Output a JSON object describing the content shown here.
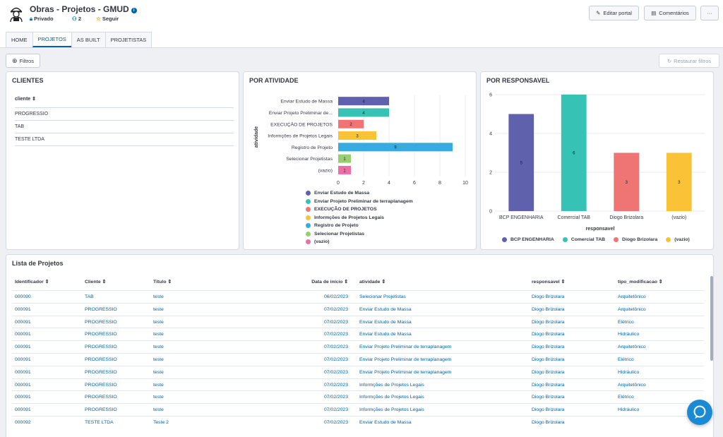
{
  "header": {
    "title": "Obras - Projetos - GMUD",
    "info_icon": "info-icon",
    "privacy": "Privado",
    "members": "2",
    "follow": "Seguir",
    "edit_label": "Editar portal",
    "comments_label": "Comentários",
    "more_label": "···"
  },
  "tabs": [
    {
      "label": "HOME"
    },
    {
      "label": "PROJETOS"
    },
    {
      "label": "AS BUILT"
    },
    {
      "label": "PROJETISTAS"
    }
  ],
  "toolbar": {
    "filters_label": "Filtros",
    "restore_label": "Restaurar filtros"
  },
  "clients_panel": {
    "title": "CLIENTES",
    "column": "cliente",
    "rows": [
      "PROGRESSIO",
      "TAB",
      "TESTE LTDA"
    ]
  },
  "activity_panel": {
    "title": "POR ATIVIDADE",
    "y_label": "atividade",
    "legend": [
      "Enviar Estudo de Massa",
      "Enviar Projeto Preliminar de terraplanagem",
      "EXECUÇÃO DE PROJETOS",
      "Informções de Projetos Legais",
      "Registro de Projeto",
      "Selecionar Projetistas",
      "(vazio)"
    ]
  },
  "responsible_panel": {
    "title": "POR RESPONSAVEL"
  },
  "chart_data": [
    {
      "type": "bar",
      "orientation": "horizontal",
      "categories": [
        "Enviar Estudo de Massa",
        "Enviar Projeto Preliminar de...",
        "EXECUÇÃO DE PROJETOS",
        "Informções de Projetos Legais",
        "Registro de Projeto",
        "Selecionar Projetistas",
        "(vazio)"
      ],
      "values": [
        4,
        4,
        2,
        3,
        9,
        1,
        1
      ],
      "colors": [
        "#6061ad",
        "#36c2b4",
        "#ef7474",
        "#fac337",
        "#37abdd",
        "#97cf6e",
        "#eb6fa5"
      ],
      "xlabel": "",
      "ylabel": "atividade",
      "xlim": [
        0,
        10
      ],
      "xticks": [
        "0",
        "2",
        "4",
        "6",
        "8",
        "10"
      ],
      "grid": true,
      "legend_position": "bottom"
    },
    {
      "type": "bar",
      "categories": [
        "BCP ENGENHARIA",
        "Comercial TAB",
        "Diogo Brizolara",
        "(vazio)"
      ],
      "values": [
        5,
        6,
        3,
        3
      ],
      "colors": [
        "#6061ad",
        "#36c2b4",
        "#ef7474",
        "#fac337"
      ],
      "xlabel": "responsavel",
      "ylabel": "",
      "ylim": [
        0,
        6
      ],
      "yticks": [
        "0",
        "2",
        "4",
        "6"
      ],
      "grid": true,
      "legend_position": "bottom"
    }
  ],
  "project_list": {
    "title": "Lista de Projetos",
    "columns": [
      "Identificador",
      "Cliente",
      "Título",
      "Data de início",
      "atividade",
      "responsavel",
      "tipo_modificacao"
    ],
    "rows": [
      [
        "000090",
        "TAB",
        "teste",
        "06/02/2023",
        "Selecionar Projetistas",
        "Diogo Brizolara",
        "Arquitetônico"
      ],
      [
        "000091",
        "PROGRESSIO",
        "teste",
        "07/02/2023",
        "Enviar Estudo de Massa",
        "Diogo Brizolara",
        "Arquitetônico"
      ],
      [
        "000091",
        "PROGRESSIO",
        "teste",
        "07/02/2023",
        "Enviar Estudo de Massa",
        "Diogo Brizolara",
        "Elétrico"
      ],
      [
        "000091",
        "PROGRESSIO",
        "teste",
        "07/02/2023",
        "Enviar Estudo de Massa",
        "Diogo Brizolara",
        "Hidráulico"
      ],
      [
        "000091",
        "PROGRESSIO",
        "teste",
        "07/02/2023",
        "Enviar Projeto Preliminar de terraplanagem",
        "Diogo Brizolara",
        "Arquitetônico"
      ],
      [
        "000091",
        "PROGRESSIO",
        "teste",
        "07/02/2023",
        "Enviar Projeto Preliminar de terraplanagem",
        "Diogo Brizolara",
        "Elétrico"
      ],
      [
        "000091",
        "PROGRESSIO",
        "teste",
        "07/02/2023",
        "Enviar Projeto Preliminar de terraplanagem",
        "Diogo Brizolara",
        "Hidráulico"
      ],
      [
        "000091",
        "PROGRESSIO",
        "teste",
        "07/02/2023",
        "Informções de Projetos Legais",
        "Diogo Brizolara",
        "Arquitetônico"
      ],
      [
        "000091",
        "PROGRESSIO",
        "teste",
        "07/02/2023",
        "Informções de Projetos Legais",
        "Diogo Brizolara",
        "Elétrico"
      ],
      [
        "000091",
        "PROGRESSIO",
        "teste",
        "07/02/2023",
        "Informções de Projetos Legais",
        "Diogo Brizolara",
        "Hidráulico"
      ],
      [
        "000092",
        "TESTE LTDA",
        "Teste 2",
        "07/02/2023",
        "Enviar Estudo de Massa",
        "Diogo Brizolara",
        ""
      ]
    ]
  },
  "chat_icon": "chat-bubble-icon"
}
